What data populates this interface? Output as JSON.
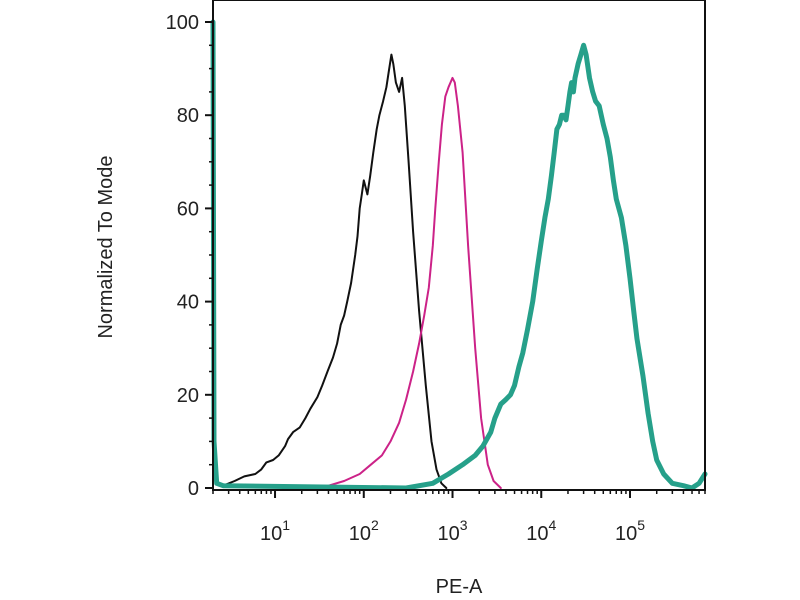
{
  "chart_data": {
    "type": "line",
    "title": "",
    "xlabel": "PE-A",
    "ylabel": "Normalized To Mode",
    "x_scale": "log",
    "xlim": [
      2,
      700000
    ],
    "ylim": [
      0,
      100
    ],
    "grid": false,
    "y_ticks": [
      "0",
      "20",
      "40",
      "60",
      "80",
      "100"
    ],
    "y_tick_values": [
      0,
      20,
      40,
      60,
      80,
      100
    ],
    "x_ticks": [
      {
        "value": 10,
        "base": "10",
        "exp": "1"
      },
      {
        "value": 100,
        "base": "10",
        "exp": "2"
      },
      {
        "value": 1000,
        "base": "10",
        "exp": "3"
      },
      {
        "value": 10000,
        "base": "10",
        "exp": "4"
      },
      {
        "value": 100000,
        "base": "10",
        "exp": "5"
      }
    ],
    "series": [
      {
        "color": "#111111",
        "width": 2,
        "points": [
          [
            2,
            100
          ],
          [
            2.05,
            10
          ],
          [
            2.2,
            1
          ],
          [
            2.6,
            0.5
          ],
          [
            3.5,
            1.5
          ],
          [
            4.5,
            2.5
          ],
          [
            6,
            3
          ],
          [
            7,
            4
          ],
          [
            8,
            5.5
          ],
          [
            9.5,
            6
          ],
          [
            11,
            7
          ],
          [
            13,
            9
          ],
          [
            14,
            10.5
          ],
          [
            16,
            12
          ],
          [
            19,
            13
          ],
          [
            22,
            15
          ],
          [
            25,
            17
          ],
          [
            30,
            19.5
          ],
          [
            34,
            22
          ],
          [
            39,
            25
          ],
          [
            45,
            28
          ],
          [
            50,
            31
          ],
          [
            55,
            35
          ],
          [
            60,
            37
          ],
          [
            65,
            40
          ],
          [
            72,
            44
          ],
          [
            80,
            50
          ],
          [
            85,
            54
          ],
          [
            90,
            60
          ],
          [
            95,
            63
          ],
          [
            100,
            66
          ],
          [
            110,
            63
          ],
          [
            118,
            67
          ],
          [
            128,
            72
          ],
          [
            140,
            77
          ],
          [
            150,
            80
          ],
          [
            165,
            83
          ],
          [
            180,
            86
          ],
          [
            190,
            89
          ],
          [
            205,
            93
          ],
          [
            215,
            91
          ],
          [
            230,
            87
          ],
          [
            250,
            85
          ],
          [
            270,
            88
          ],
          [
            290,
            82
          ],
          [
            320,
            70
          ],
          [
            360,
            55
          ],
          [
            420,
            38
          ],
          [
            500,
            22
          ],
          [
            580,
            10
          ],
          [
            660,
            4
          ],
          [
            750,
            1
          ],
          [
            850,
            0
          ]
        ]
      },
      {
        "color": "#cc2288",
        "width": 2,
        "points": [
          [
            25,
            0
          ],
          [
            40,
            0.5
          ],
          [
            60,
            1.5
          ],
          [
            90,
            3
          ],
          [
            120,
            5
          ],
          [
            160,
            7
          ],
          [
            200,
            10
          ],
          [
            250,
            14
          ],
          [
            300,
            19
          ],
          [
            360,
            25
          ],
          [
            420,
            31
          ],
          [
            480,
            37
          ],
          [
            540,
            43
          ],
          [
            600,
            52
          ],
          [
            640,
            60
          ],
          [
            700,
            70
          ],
          [
            760,
            78
          ],
          [
            830,
            84
          ],
          [
            900,
            86
          ],
          [
            1000,
            88
          ],
          [
            1060,
            87
          ],
          [
            1150,
            82
          ],
          [
            1300,
            72
          ],
          [
            1500,
            52
          ],
          [
            1800,
            30
          ],
          [
            2100,
            15
          ],
          [
            2500,
            5
          ],
          [
            2900,
            1.5
          ],
          [
            3500,
            0
          ]
        ]
      },
      {
        "color": "#26a08a",
        "width": 5,
        "points": [
          [
            2,
            100
          ],
          [
            2.05,
            10
          ],
          [
            2.2,
            1
          ],
          [
            2.6,
            0.5
          ],
          [
            300,
            0
          ],
          [
            600,
            1
          ],
          [
            900,
            3
          ],
          [
            1300,
            5
          ],
          [
            1800,
            7
          ],
          [
            2200,
            9
          ],
          [
            2700,
            12
          ],
          [
            3000,
            15
          ],
          [
            3500,
            18
          ],
          [
            4000,
            19
          ],
          [
            4500,
            20
          ],
          [
            5000,
            22
          ],
          [
            5600,
            26
          ],
          [
            6200,
            29
          ],
          [
            7000,
            34
          ],
          [
            8000,
            40
          ],
          [
            9000,
            47
          ],
          [
            10000,
            53
          ],
          [
            11000,
            58
          ],
          [
            12000,
            62
          ],
          [
            13000,
            67
          ],
          [
            14000,
            72
          ],
          [
            15000,
            77
          ],
          [
            16000,
            78
          ],
          [
            17000,
            80
          ],
          [
            18000,
            80
          ],
          [
            19000,
            79
          ],
          [
            20000,
            82
          ],
          [
            21000,
            85
          ],
          [
            22000,
            87
          ],
          [
            23000,
            85
          ],
          [
            24000,
            88
          ],
          [
            26000,
            91
          ],
          [
            28000,
            93
          ],
          [
            30000,
            95
          ],
          [
            32000,
            93
          ],
          [
            35000,
            88
          ],
          [
            38000,
            85
          ],
          [
            41000,
            83
          ],
          [
            45000,
            82
          ],
          [
            50000,
            78
          ],
          [
            55000,
            75
          ],
          [
            60000,
            71
          ],
          [
            65000,
            66
          ],
          [
            70000,
            62
          ],
          [
            80000,
            58
          ],
          [
            90000,
            52
          ],
          [
            100000,
            45
          ],
          [
            110000,
            38
          ],
          [
            120000,
            32
          ],
          [
            140000,
            24
          ],
          [
            160000,
            16
          ],
          [
            180000,
            10
          ],
          [
            200000,
            6
          ],
          [
            240000,
            3
          ],
          [
            300000,
            1
          ],
          [
            400000,
            0.5
          ],
          [
            500000,
            0
          ],
          [
            600000,
            1
          ],
          [
            700000,
            3
          ]
        ]
      }
    ]
  }
}
